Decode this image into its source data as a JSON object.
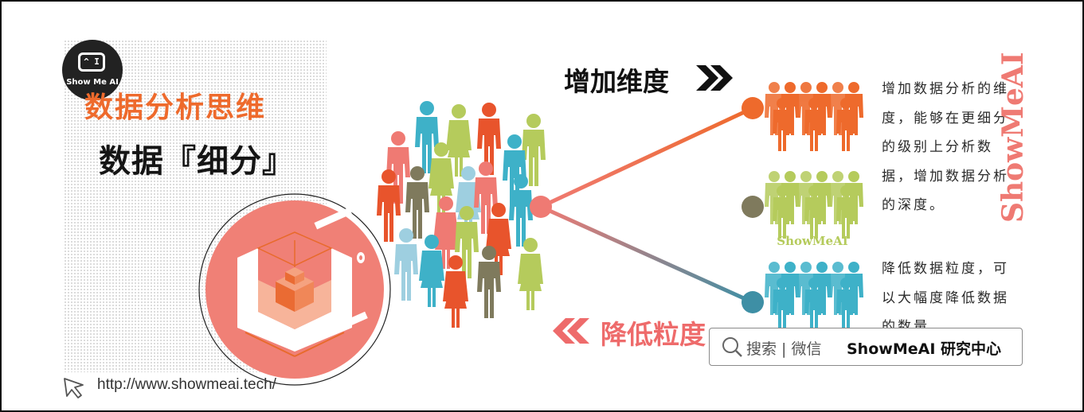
{
  "logo": {
    "badge": "^ I",
    "brand": "Show Me AI"
  },
  "title": {
    "line1": "数据分析思维",
    "line2": "数据『细分』"
  },
  "url": "http://www.showmeai.tech/",
  "branches": {
    "increase": {
      "label": "增加维度",
      "description": "增加数据分析的维度，能够在更细分的级别上分析数据，增加数据分析的深度。"
    },
    "decrease": {
      "label": "降低粒度",
      "description": "降低数据粒度，可以大幅度降低数据的数量。"
    }
  },
  "watermark": {
    "vertical": "ShowMeAI",
    "middle": "ShowMeAI"
  },
  "search": {
    "hint": "搜索 | 微信",
    "brand": "ShowMeAI 研究中心"
  },
  "colors": {
    "orange": "#ee6a2c",
    "coral": "#ef7a73",
    "lime": "#b5cb5c",
    "teal": "#3eb1c8",
    "olive": "#7f7a5d",
    "dark": "#151515"
  },
  "icons": [
    "monitor-logo-icon",
    "cursor-arrow-icon",
    "double-chevron-right-icon",
    "double-chevron-left-icon",
    "search-icon",
    "cube-illustration-icon"
  ]
}
